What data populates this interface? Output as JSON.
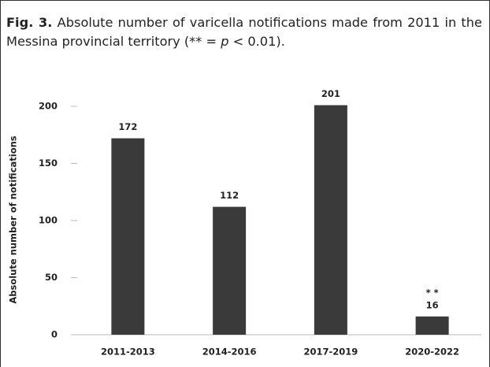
{
  "caption": {
    "label": "Fig. 3.",
    "text_before": "Absolute number of varicella notifications made from 2011 in the Messina provincial territory (** = ",
    "p": "p",
    "text_after": " < 0.01)."
  },
  "chart_data": {
    "type": "bar",
    "y_label": "Absolute number of notifications",
    "categories": [
      "2011-2013",
      "2014-2016",
      "2017-2019",
      "2020-2022"
    ],
    "values": [
      172,
      112,
      201,
      16
    ],
    "color": "#3a3a3a",
    "ylim": [
      0,
      200
    ],
    "yticks": [
      0,
      50,
      100,
      150,
      200
    ],
    "annotations": [
      {
        "category": "2020-2022",
        "text": "* *"
      }
    ]
  }
}
